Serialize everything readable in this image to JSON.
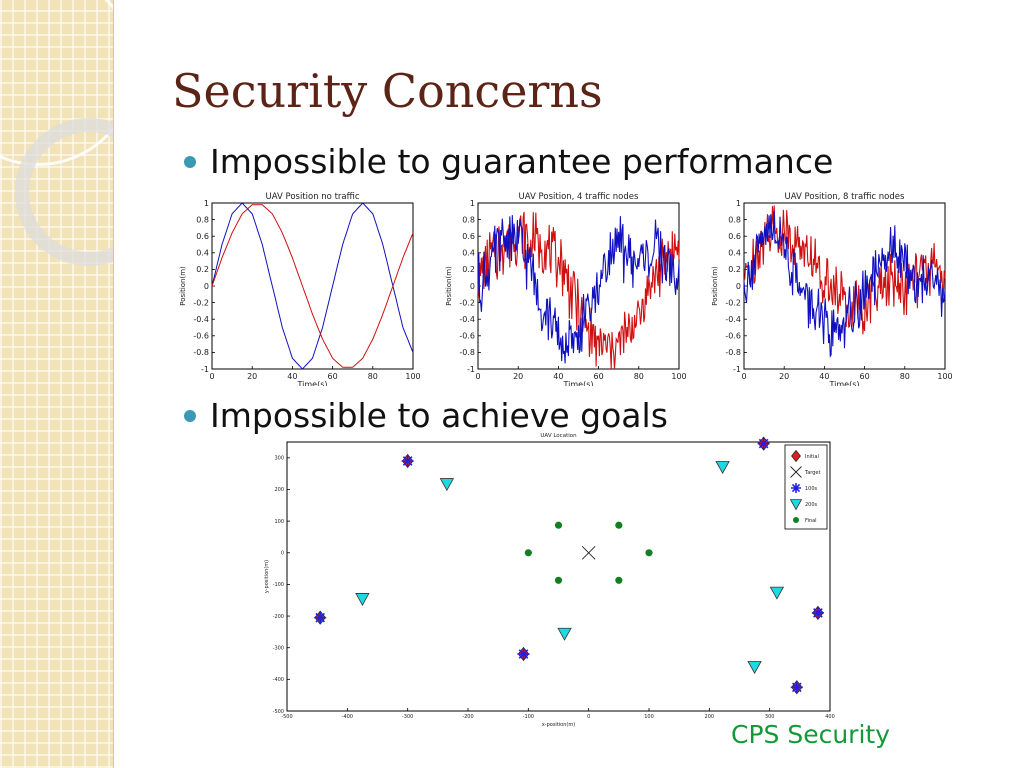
{
  "slide": {
    "title": "Security Concerns",
    "bullets": [
      "Impossible to guarantee performance",
      "Impossible to achieve goals"
    ],
    "footer": "CPS Security"
  },
  "colors": {
    "title": "#5c2416",
    "bullet_dot": "#3a9ab5",
    "footer": "#119a37",
    "sidebar": "#f1e2b8"
  },
  "chart_data": [
    {
      "type": "line",
      "title": "UAV Position no traffic",
      "xlabel": "Time(s)",
      "ylabel": "Position(m)",
      "xlim": [
        0,
        100
      ],
      "ylim": [
        -1,
        1
      ],
      "xticks": [
        0,
        20,
        40,
        60,
        80,
        100
      ],
      "yticks": [
        1,
        0.8,
        0.6,
        0.4,
        0.2,
        0,
        -0.2,
        -0.4,
        -0.6,
        -0.8,
        -1
      ],
      "series": [
        {
          "color": "#1010c0",
          "x": [
            0,
            5,
            10,
            15,
            20,
            25,
            30,
            35,
            40,
            45,
            50,
            55,
            60,
            65,
            70,
            75,
            80,
            85,
            90,
            95,
            100
          ],
          "values": [
            0.0,
            0.5,
            0.87,
            1.0,
            0.87,
            0.5,
            0.0,
            -0.5,
            -0.87,
            -1.0,
            -0.87,
            -0.5,
            0.0,
            0.5,
            0.87,
            1.0,
            0.87,
            0.5,
            0.0,
            -0.5,
            -0.8
          ]
        },
        {
          "color": "#d01010",
          "x": [
            0,
            5,
            10,
            15,
            20,
            25,
            30,
            35,
            40,
            45,
            50,
            55,
            60,
            65,
            70,
            75,
            80,
            85,
            90,
            95,
            100
          ],
          "values": [
            0.0,
            0.34,
            0.64,
            0.87,
            0.98,
            0.98,
            0.87,
            0.64,
            0.34,
            0.0,
            -0.34,
            -0.64,
            -0.87,
            -0.98,
            -0.98,
            -0.87,
            -0.64,
            -0.34,
            0.0,
            0.34,
            0.64
          ]
        }
      ]
    },
    {
      "type": "line",
      "title": "UAV Position, 4 traffic nodes",
      "xlabel": "Time(s)",
      "ylabel": "Position(m)",
      "xlim": [
        0,
        100
      ],
      "ylim": [
        -1,
        1
      ],
      "xticks": [
        0,
        20,
        40,
        60,
        80,
        100
      ],
      "yticks": [
        1,
        0.8,
        0.6,
        0.4,
        0.2,
        0,
        -0.2,
        -0.4,
        -0.6,
        -0.8,
        -1
      ],
      "series": [
        {
          "color": "#d01010",
          "x": [
            0,
            5,
            10,
            15,
            20,
            25,
            30,
            35,
            40,
            45,
            50,
            55,
            60,
            65,
            70,
            75,
            80,
            85,
            90,
            95,
            100
          ],
          "values": [
            0.0,
            0.3,
            0.45,
            0.55,
            0.6,
            0.55,
            0.5,
            0.4,
            0.3,
            0.0,
            -0.3,
            -0.55,
            -0.7,
            -0.75,
            -0.7,
            -0.55,
            -0.3,
            0.0,
            0.2,
            0.4,
            0.5
          ]
        },
        {
          "color": "#1010c0",
          "x": [
            0,
            5,
            10,
            15,
            20,
            25,
            30,
            35,
            40,
            45,
            50,
            55,
            60,
            65,
            70,
            75,
            80,
            85,
            90,
            95,
            100
          ],
          "values": [
            0.0,
            0.2,
            0.45,
            0.6,
            0.55,
            0.3,
            -0.1,
            -0.4,
            -0.6,
            -0.75,
            -0.6,
            -0.3,
            0.0,
            0.35,
            0.5,
            0.35,
            0.25,
            0.4,
            0.45,
            0.2,
            0.0
          ]
        }
      ]
    },
    {
      "type": "line",
      "title": "UAV Position, 8 traffic nodes",
      "xlabel": "Time(s)",
      "ylabel": "Position(m)",
      "xlim": [
        0,
        100
      ],
      "ylim": [
        -1,
        1
      ],
      "xticks": [
        0,
        20,
        40,
        60,
        80,
        100
      ],
      "yticks": [
        1,
        0.8,
        0.6,
        0.4,
        0.2,
        0,
        -0.2,
        -0.4,
        -0.6,
        -0.8,
        -1
      ],
      "series": [
        {
          "color": "#d01010",
          "x": [
            0,
            5,
            10,
            15,
            20,
            25,
            30,
            35,
            40,
            45,
            50,
            55,
            60,
            65,
            70,
            75,
            80,
            85,
            90,
            95,
            100
          ],
          "values": [
            0.0,
            0.3,
            0.6,
            0.7,
            0.65,
            0.55,
            0.4,
            0.25,
            0.1,
            -0.1,
            -0.2,
            -0.25,
            -0.2,
            -0.1,
            0.0,
            0.05,
            0.0,
            0.1,
            0.2,
            0.25,
            0.15
          ]
        },
        {
          "color": "#1010c0",
          "x": [
            0,
            5,
            10,
            15,
            20,
            25,
            30,
            35,
            40,
            45,
            50,
            55,
            60,
            65,
            70,
            75,
            80,
            85,
            90,
            95,
            100
          ],
          "values": [
            0.0,
            0.3,
            0.55,
            0.7,
            0.5,
            0.2,
            -0.1,
            -0.35,
            -0.5,
            -0.6,
            -0.45,
            -0.3,
            -0.1,
            0.1,
            0.3,
            0.45,
            0.25,
            0.05,
            0.1,
            0.2,
            -0.3
          ]
        }
      ]
    },
    {
      "type": "scatter",
      "title": "UAV Location",
      "xlabel": "x-position(m)",
      "ylabel": "y-position(m)",
      "xlim": [
        -500,
        400
      ],
      "ylim": [
        -500,
        350
      ],
      "xticks": [
        -500,
        -400,
        -300,
        -200,
        -100,
        0,
        100,
        200,
        300,
        400
      ],
      "yticks": [
        300,
        200,
        100,
        0,
        -100,
        -200,
        -300,
        -400,
        -500
      ],
      "legend_position": "top-right",
      "series": [
        {
          "name": "Initial",
          "marker": "diamond",
          "color": "#e02020",
          "x": [
            -300,
            -445,
            -108,
            290,
            380,
            345
          ],
          "y": [
            290,
            -205,
            -320,
            345,
            -190,
            -425
          ]
        },
        {
          "name": "Target",
          "marker": "x",
          "color": "#222222",
          "x": [
            0
          ],
          "y": [
            0
          ]
        },
        {
          "name": "100s",
          "marker": "asterisk",
          "color": "#2020e0",
          "x": [
            -300,
            -445,
            -108,
            290,
            380,
            345
          ],
          "y": [
            290,
            -205,
            -320,
            345,
            -190,
            -425
          ]
        },
        {
          "name": "200s",
          "marker": "triangle",
          "color": "#20d8e0",
          "x": [
            -235,
            -375,
            -40,
            222,
            312,
            275
          ],
          "y": [
            218,
            -145,
            -255,
            272,
            -125,
            -360
          ]
        },
        {
          "name": "Final",
          "marker": "circle",
          "color": "#108020",
          "x": [
            50,
            100,
            50,
            -50,
            -100,
            -50
          ],
          "y": [
            87,
            0,
            -87,
            -87,
            0,
            87
          ]
        }
      ]
    }
  ]
}
